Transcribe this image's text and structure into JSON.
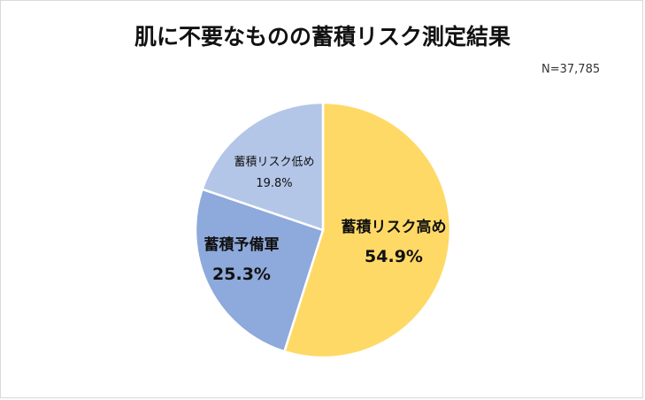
{
  "chart_data": {
    "type": "pie",
    "title": "肌に不要なものの蓄積リスク測定結果",
    "annotation": "N=37,785",
    "slices": [
      {
        "label": "蓄積リスク高め",
        "value": 54.9,
        "display": "54.9%",
        "color": "#FFD966"
      },
      {
        "label": "蓄積予備軍",
        "value": 25.3,
        "display": "25.3%",
        "color": "#8EA9DB"
      },
      {
        "label": "蓄積リスク低め",
        "value": 19.8,
        "display": "19.8%",
        "color": "#B4C6E7"
      }
    ],
    "start_angle": "12 o'clock, clockwise",
    "legend": "none (data labels inside slices)"
  },
  "header": {
    "title": "肌に不要なものの蓄積リスク測定結果",
    "sample_size": "N=37,785"
  }
}
